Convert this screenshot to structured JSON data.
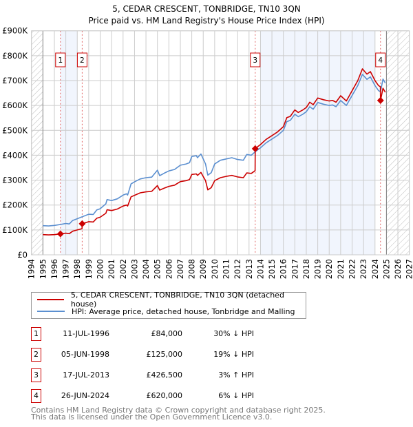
{
  "chart_data": {
    "type": "line",
    "title": "5, CEDAR CRESCENT, TONBRIDGE, TN10 3QN",
    "subtitle": "Price paid vs. HM Land Registry's House Price Index (HPI)",
    "xlim": [
      1994,
      2027
    ],
    "ylim": [
      0,
      900000
    ],
    "x_ticks": [
      "1994",
      "1995",
      "1996",
      "1997",
      "1998",
      "1999",
      "2000",
      "2001",
      "2002",
      "2003",
      "2004",
      "2005",
      "2006",
      "2007",
      "2008",
      "2009",
      "2010",
      "2011",
      "2012",
      "2013",
      "2014",
      "2015",
      "2016",
      "2017",
      "2018",
      "2019",
      "2020",
      "2021",
      "2022",
      "2023",
      "2024",
      "2025",
      "2026",
      "2027"
    ],
    "y_ticks": [
      {
        "v": 0,
        "label": "£0"
      },
      {
        "v": 100,
        "label": "£100K"
      },
      {
        "v": 200,
        "label": "£200K"
      },
      {
        "v": 300,
        "label": "£300K"
      },
      {
        "v": 400,
        "label": "£400K"
      },
      {
        "v": 500,
        "label": "£500K"
      },
      {
        "v": 600,
        "label": "£600K"
      },
      {
        "v": 700,
        "label": "£700K"
      },
      {
        "v": 800,
        "label": "£800K"
      },
      {
        "v": 900,
        "label": "£900K"
      }
    ],
    "y_unit": "thousands GBP",
    "grid": true,
    "hatched_ranges": [
      [
        1994,
        1995
      ],
      [
        2025,
        2027
      ]
    ],
    "shaded_ranges": [
      [
        1996.53,
        1998.0
      ],
      [
        2014.0,
        2024.0
      ]
    ],
    "series": [
      {
        "name": "5, CEDAR CRESCENT, TONBRIDGE, TN10 3QN (detached house)",
        "color": "#cc0000",
        "x": [
          1995,
          1995.5,
          1996,
          1996.53,
          1997,
          1997.3,
          1997.6,
          1998,
          1998.42,
          1998.43,
          1999,
          1999.4,
          1999.7,
          2000,
          2000.5,
          2000.6,
          2001,
          2001.5,
          2002,
          2002.3,
          2002.4,
          2002.7,
          2003,
          2003.5,
          2004,
          2004.5,
          2005,
          2005.2,
          2005.6,
          2006,
          2006.5,
          2007,
          2007.5,
          2007.8,
          2008,
          2008.4,
          2008.5,
          2008.8,
          2009.2,
          2009.4,
          2009.7,
          2010,
          2010.5,
          2011,
          2011.5,
          2012,
          2012.5,
          2012.8,
          2013.2,
          2013.53,
          2013.54,
          2014,
          2014.5,
          2015,
          2015.5,
          2016,
          2016.3,
          2016.6,
          2017,
          2017.3,
          2017.7,
          2018,
          2018.3,
          2018.6,
          2019,
          2019.5,
          2020,
          2020.3,
          2020.6,
          2021,
          2021.5,
          2022,
          2022.5,
          2022.9,
          2023.3,
          2023.6,
          2024,
          2024.3,
          2024.47,
          2024.48,
          2024.7,
          2024.9
        ],
        "values": [
          81,
          80,
          81,
          84,
          87,
          85,
          95,
          100,
          105,
          125,
          133,
          132,
          147,
          151,
          167,
          181,
          178,
          184,
          196,
          200,
          196,
          233,
          239,
          249,
          253,
          255,
          278,
          260,
          268,
          275,
          280,
          294,
          298,
          302,
          323,
          325,
          319,
          331,
          298,
          261,
          270,
          298,
          310,
          315,
          319,
          313,
          310,
          329,
          327,
          338,
          426.5,
          443,
          464,
          479,
          494,
          515,
          551,
          556,
          582,
          572,
          582,
          592,
          613,
          603,
          630,
          623,
          618,
          620,
          613,
          639,
          618,
          659,
          700,
          747,
          726,
          736,
          700,
          680,
          675,
          620,
          669,
          653
        ]
      },
      {
        "name": "HPI: Average price, detached house, Tonbridge and Malling",
        "color": "#5b8fd0",
        "x": [
          1995,
          1995.5,
          1996,
          1996.53,
          1997,
          1997.3,
          1997.6,
          1998,
          1998.43,
          1999,
          1999.4,
          1999.7,
          2000,
          2000.5,
          2000.6,
          2001,
          2001.5,
          2002,
          2002.3,
          2002.4,
          2002.7,
          2003,
          2003.5,
          2004,
          2004.5,
          2005,
          2005.2,
          2005.6,
          2006,
          2006.5,
          2007,
          2007.5,
          2007.8,
          2008,
          2008.4,
          2008.5,
          2008.8,
          2009.2,
          2009.4,
          2009.7,
          2010,
          2010.5,
          2011,
          2011.5,
          2012,
          2012.5,
          2012.8,
          2013.2,
          2013.54,
          2014,
          2014.5,
          2015,
          2015.5,
          2016,
          2016.3,
          2016.6,
          2017,
          2017.3,
          2017.7,
          2018,
          2018.3,
          2018.6,
          2019,
          2019.5,
          2020,
          2020.3,
          2020.6,
          2021,
          2021.5,
          2022,
          2022.5,
          2022.9,
          2023.3,
          2023.6,
          2024,
          2024.3,
          2024.48,
          2024.7,
          2024.9
        ],
        "values": [
          117,
          116,
          118,
          122,
          126,
          124,
          138,
          145,
          153,
          163,
          162,
          180,
          185,
          205,
          222,
          218,
          225,
          240,
          245,
          240,
          285,
          293,
          305,
          310,
          312,
          340,
          318,
          328,
          337,
          343,
          360,
          365,
          370,
          395,
          398,
          390,
          405,
          365,
          320,
          330,
          365,
          380,
          385,
          390,
          383,
          380,
          403,
          400,
          414,
          430,
          450,
          465,
          480,
          500,
          535,
          540,
          565,
          555,
          565,
          575,
          595,
          585,
          612,
          605,
          600,
          602,
          595,
          620,
          600,
          640,
          680,
          725,
          705,
          715,
          680,
          660,
          655,
          706,
          690
        ]
      }
    ],
    "sales": [
      {
        "n": "1",
        "x": 1996.53,
        "value": 84
      },
      {
        "n": "2",
        "x": 1998.43,
        "value": 125
      },
      {
        "n": "3",
        "x": 2013.54,
        "value": 426.5
      },
      {
        "n": "4",
        "x": 2024.48,
        "value": 620
      }
    ]
  },
  "legend": {
    "red_label": "5, CEDAR CRESCENT, TONBRIDGE, TN10 3QN (detached house)",
    "blue_label": "HPI: Average price, detached house, Tonbridge and Malling"
  },
  "table": [
    {
      "n": "1",
      "date": "11-JUL-1996",
      "price": "£84,000",
      "hpi": "30% ↓ HPI"
    },
    {
      "n": "2",
      "date": "05-JUN-1998",
      "price": "£125,000",
      "hpi": "19% ↓ HPI"
    },
    {
      "n": "3",
      "date": "17-JUL-2013",
      "price": "£426,500",
      "hpi": "3% ↑ HPI"
    },
    {
      "n": "4",
      "date": "26-JUN-2024",
      "price": "£620,000",
      "hpi": "6% ↓ HPI"
    }
  ],
  "footer": {
    "line1": "Contains HM Land Registry data © Crown copyright and database right 2025.",
    "line2": "This data is licensed under the Open Government Licence v3.0."
  }
}
